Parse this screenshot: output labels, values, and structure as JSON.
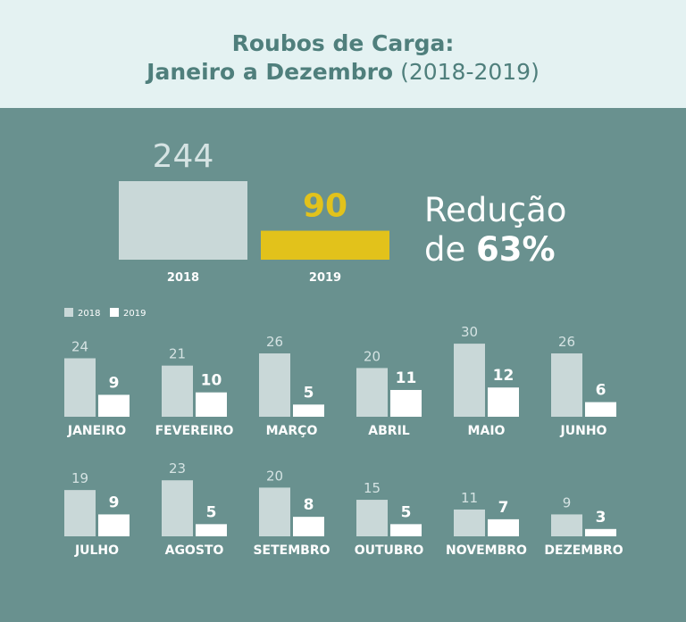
{
  "header": {
    "title_line1": "Roubos de Carga:",
    "title_line2_bold": "Janeiro a Dezembro",
    "title_line2_light": "(2018-2019)"
  },
  "summary": {
    "label_2018": "2018",
    "value_2018": 244,
    "label_2019": "2019",
    "value_2019": 90,
    "reduction_line1": "Redução",
    "reduction_prefix": "de",
    "reduction_value": "63%"
  },
  "colors": {
    "y2018": "#c9d8d8",
    "y2019": "#ffffff",
    "accent": "#e2c21b",
    "bg": "#69918f"
  },
  "chart_data": {
    "type": "bar",
    "legend": {
      "position": "top-left",
      "entries": [
        "2018",
        "2019"
      ]
    },
    "categories": [
      "JANEIRO",
      "FEVEREIRO",
      "MARÇO",
      "ABRIL",
      "MAIO",
      "JUNHO",
      "JULHO",
      "AGOSTO",
      "SETEMBRO",
      "OUTUBRO",
      "NOVEMBRO",
      "DEZEMBRO"
    ],
    "series": [
      {
        "name": "2018",
        "values": [
          24,
          21,
          26,
          20,
          30,
          26,
          19,
          23,
          20,
          15,
          11,
          9
        ]
      },
      {
        "name": "2019",
        "values": [
          9,
          10,
          5,
          11,
          12,
          6,
          9,
          5,
          8,
          5,
          7,
          3
        ]
      }
    ]
  }
}
